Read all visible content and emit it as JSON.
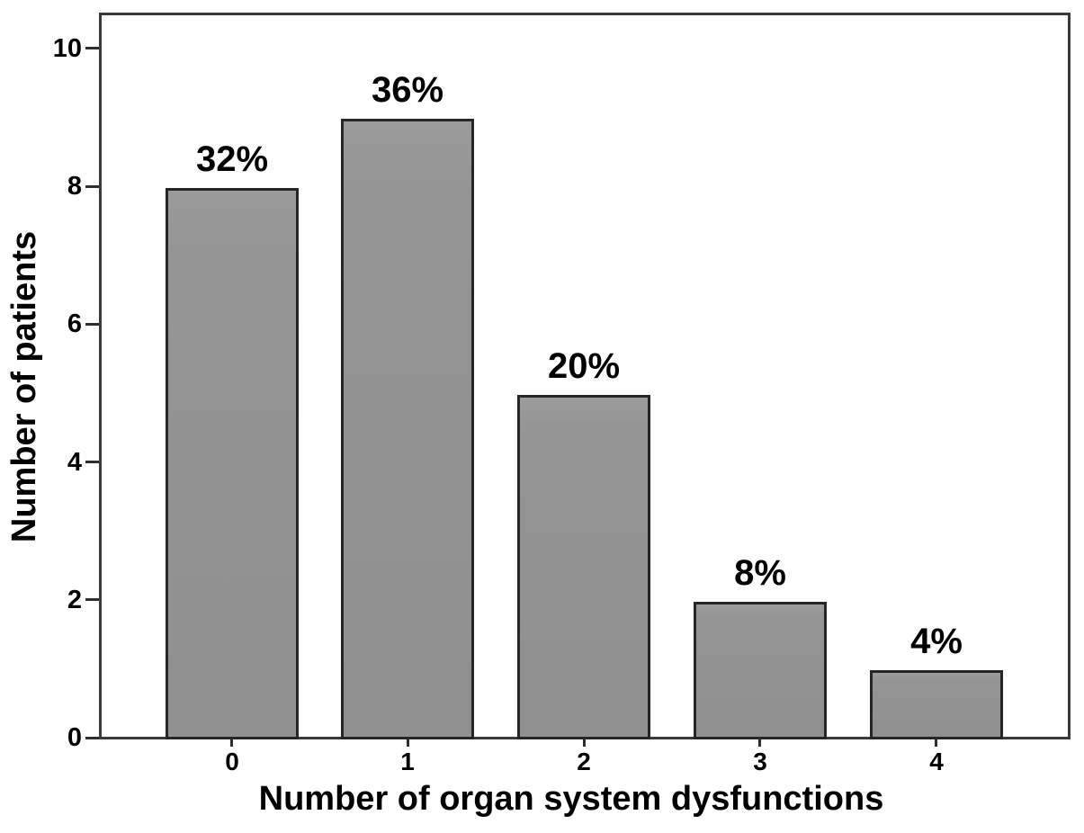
{
  "figure": {
    "background_color": "#ffffff"
  },
  "chart_data": {
    "type": "bar",
    "title": "",
    "categories": [
      "0",
      "1",
      "2",
      "3",
      "4"
    ],
    "values": [
      8,
      9,
      5,
      2,
      1
    ],
    "bar_labels": [
      "32%",
      "36%",
      "20%",
      "8%",
      "4%"
    ],
    "xlabel": "Number of organ system dysfunctions",
    "ylabel": "Number of patients",
    "ytick_labels": [
      "0",
      "2",
      "4",
      "6",
      "8",
      "10"
    ],
    "ytick_values": [
      0,
      2,
      4,
      6,
      8,
      10
    ],
    "ylim": [
      0,
      10.52
    ],
    "grid": false,
    "legend": "none",
    "bar_color": "#949494",
    "bar_border_color": "#262626",
    "frame_color": "#3a3a3a",
    "text_color": "#000000"
  }
}
